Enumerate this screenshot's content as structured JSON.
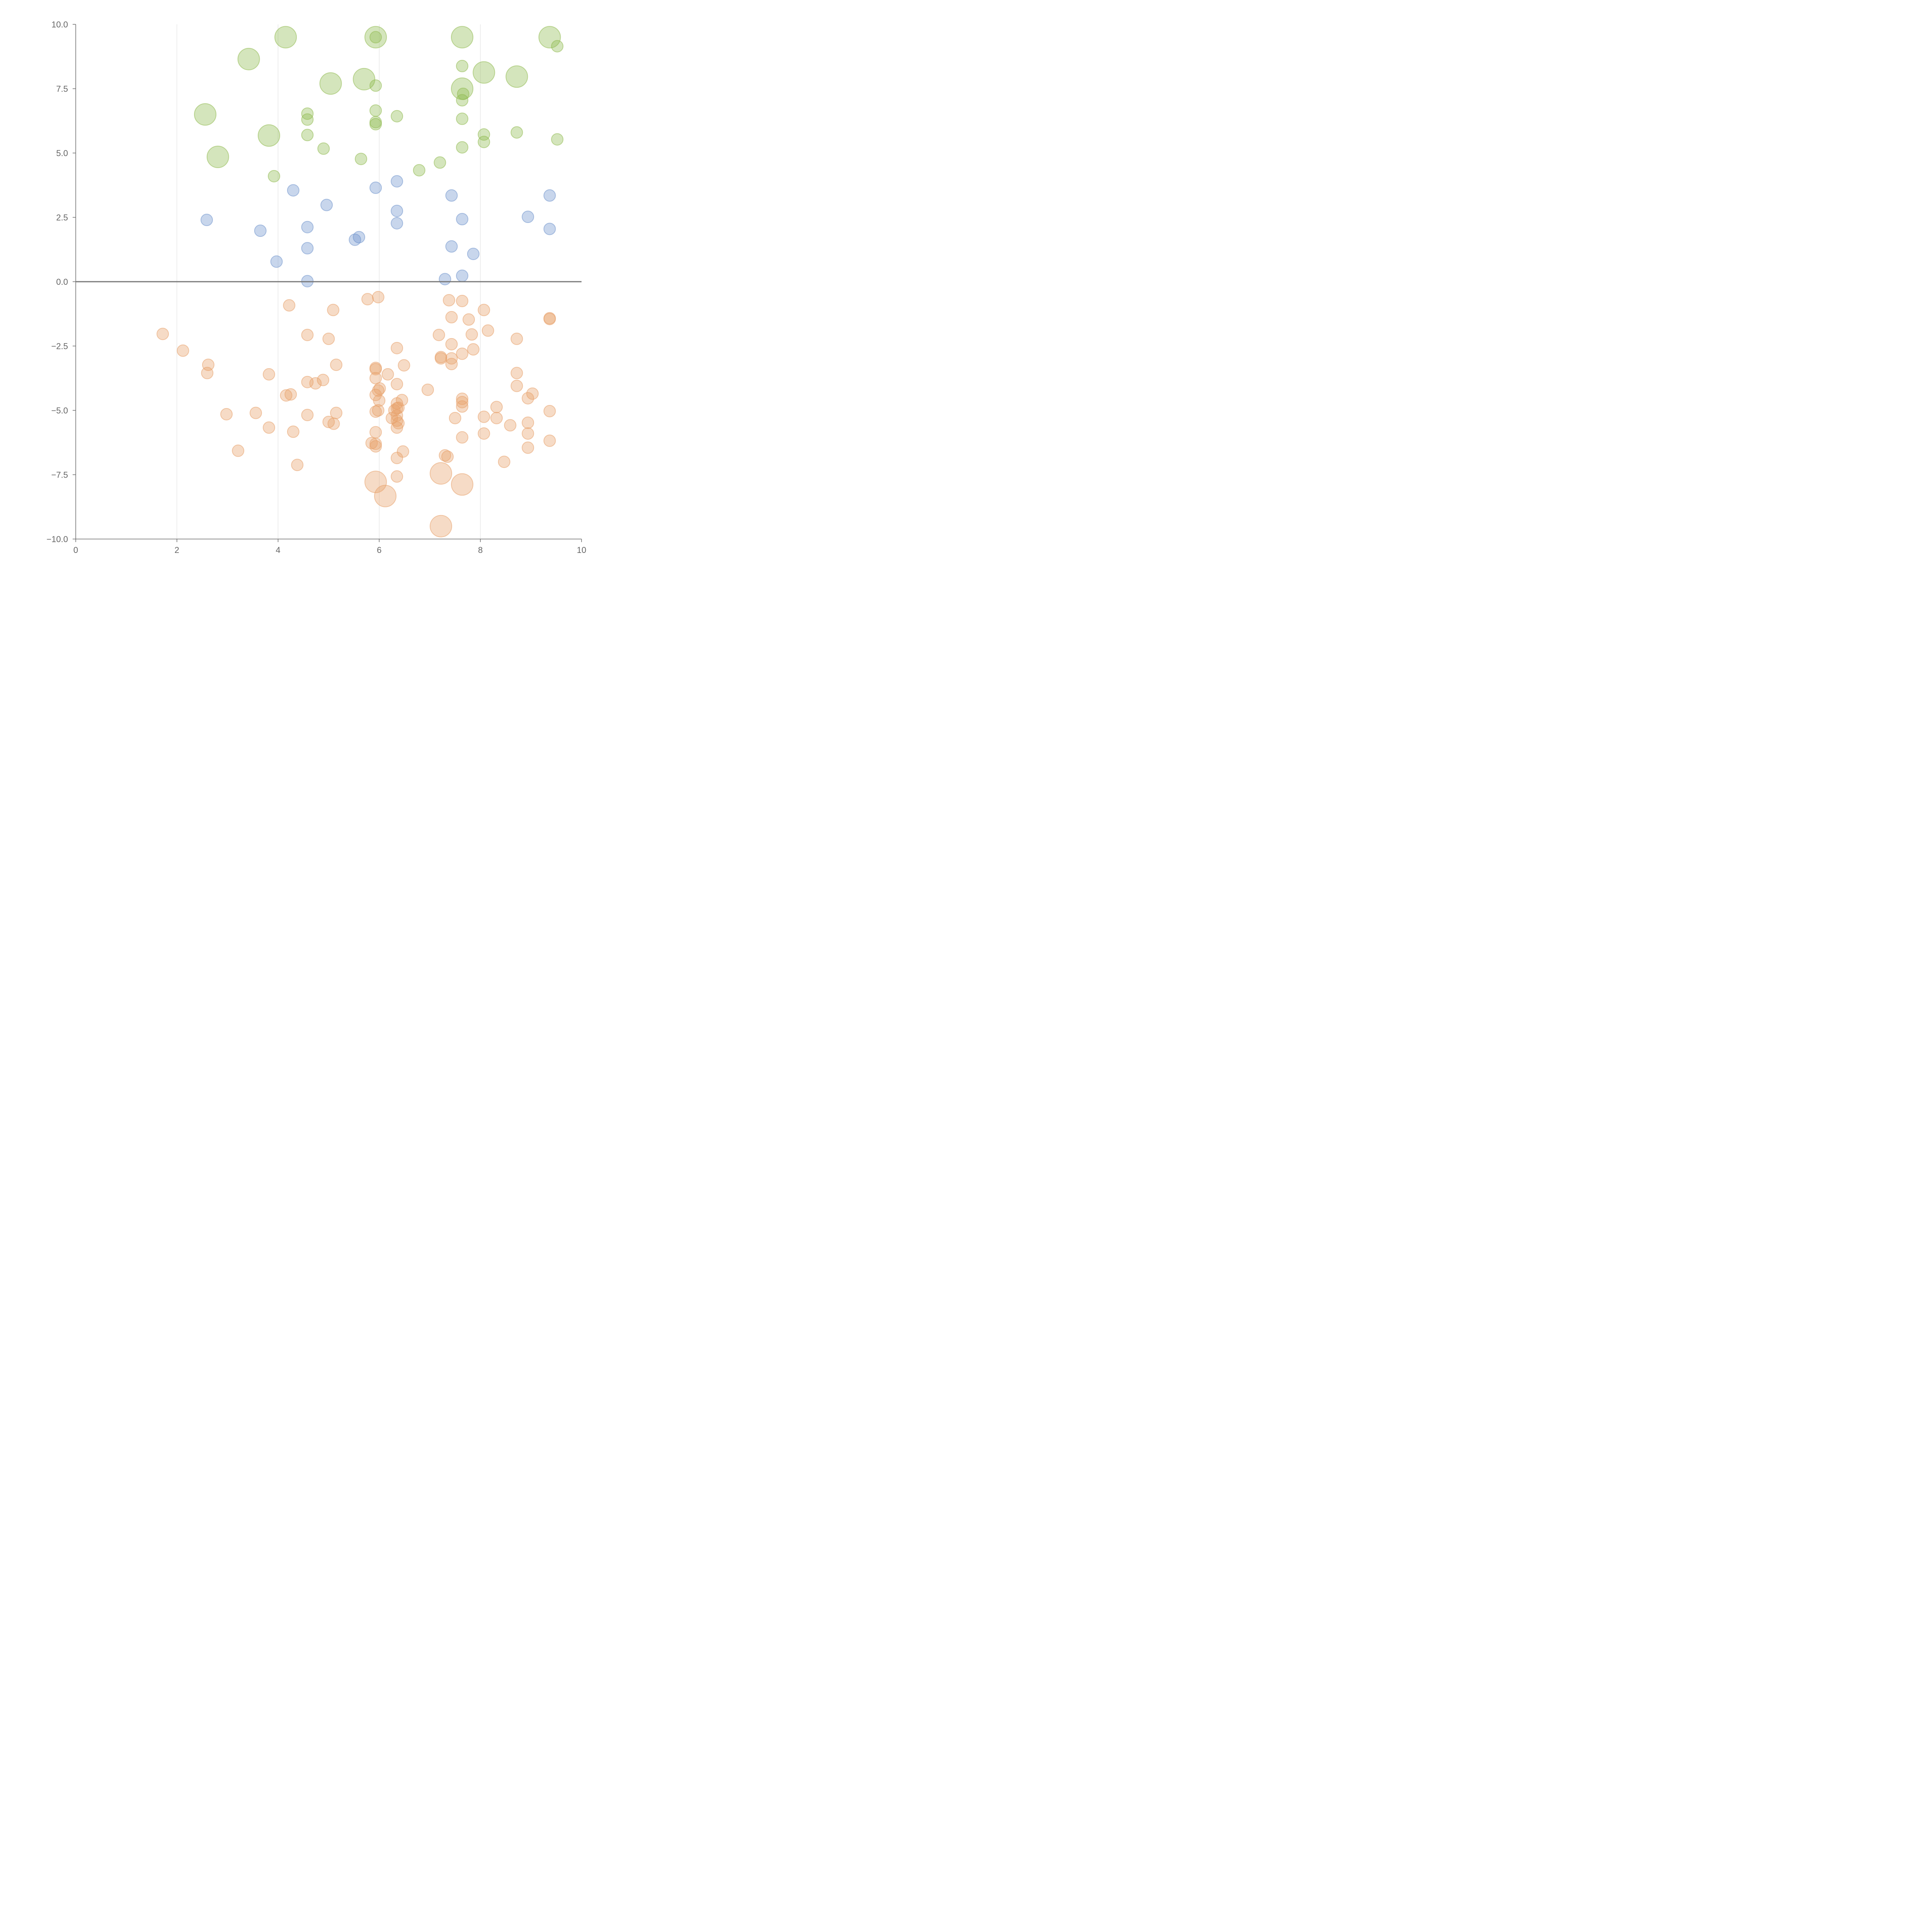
{
  "chart_data": {
    "type": "scatter",
    "title": "",
    "xlabel": "",
    "ylabel": "",
    "xlim": [
      0,
      10
    ],
    "ylim": [
      -10,
      10
    ],
    "x_ticks": [
      0,
      2,
      4,
      6,
      8,
      10
    ],
    "x_tick_labels": [
      "0",
      "2",
      "4",
      "6",
      "8",
      "10"
    ],
    "y_ticks": [
      -10,
      -7.5,
      -5,
      -2.5,
      0,
      2.5,
      5,
      7.5,
      10
    ],
    "y_tick_labels": [
      "−10.0",
      "−7.5",
      "−5.0",
      "−2.5",
      "0.0",
      "2.5",
      "5.0",
      "7.5",
      "10.0"
    ],
    "vertical_grid_at": [
      2,
      4,
      6,
      8
    ],
    "reference_line_y": 0,
    "series": [
      {
        "name": "green",
        "color": "#8fba4f",
        "points": [
          [
            4.15,
            9.5,
            2
          ],
          [
            5.93,
            9.5,
            2
          ],
          [
            5.93,
            9.5,
            1
          ],
          [
            7.64,
            9.5,
            2
          ],
          [
            9.37,
            9.5,
            2
          ],
          [
            9.52,
            9.15,
            1
          ],
          [
            3.42,
            8.65,
            2
          ],
          [
            7.64,
            8.38,
            1
          ],
          [
            8.07,
            8.13,
            2
          ],
          [
            8.72,
            7.97,
            2
          ],
          [
            5.7,
            7.87,
            2
          ],
          [
            5.04,
            7.7,
            2
          ],
          [
            5.93,
            7.62,
            1
          ],
          [
            7.64,
            7.5,
            2
          ],
          [
            7.66,
            7.3,
            1
          ],
          [
            7.64,
            7.05,
            1
          ],
          [
            2.56,
            6.5,
            2
          ],
          [
            5.93,
            6.65,
            1
          ],
          [
            4.58,
            6.53,
            1
          ],
          [
            6.35,
            6.43,
            1
          ],
          [
            4.58,
            6.3,
            1
          ],
          [
            7.64,
            6.33,
            1
          ],
          [
            5.93,
            6.2,
            1
          ],
          [
            5.93,
            6.12,
            1
          ],
          [
            3.82,
            5.68,
            2
          ],
          [
            4.58,
            5.7,
            1
          ],
          [
            8.07,
            5.72,
            1
          ],
          [
            8.72,
            5.8,
            1
          ],
          [
            9.52,
            5.53,
            1
          ],
          [
            8.07,
            5.43,
            1
          ],
          [
            7.64,
            5.22,
            1
          ],
          [
            4.9,
            5.17,
            1
          ],
          [
            2.81,
            4.85,
            2
          ],
          [
            5.64,
            4.77,
            1
          ],
          [
            7.2,
            4.63,
            1
          ],
          [
            6.79,
            4.33,
            1
          ],
          [
            3.92,
            4.1,
            1
          ]
        ]
      },
      {
        "name": "blue",
        "color": "#6f93cc",
        "points": [
          [
            6.35,
            3.9,
            1
          ],
          [
            5.93,
            3.65,
            1
          ],
          [
            4.3,
            3.55,
            1
          ],
          [
            7.43,
            3.35,
            1
          ],
          [
            9.37,
            3.35,
            1
          ],
          [
            4.96,
            2.98,
            1
          ],
          [
            6.35,
            2.75,
            1
          ],
          [
            8.94,
            2.52,
            1
          ],
          [
            2.59,
            2.4,
            1
          ],
          [
            7.64,
            2.43,
            1
          ],
          [
            6.35,
            2.27,
            1
          ],
          [
            4.58,
            2.12,
            1
          ],
          [
            9.37,
            2.05,
            1
          ],
          [
            3.65,
            1.98,
            1
          ],
          [
            5.6,
            1.73,
            1
          ],
          [
            5.52,
            1.63,
            1
          ],
          [
            7.43,
            1.37,
            1
          ],
          [
            4.58,
            1.3,
            1
          ],
          [
            7.86,
            1.08,
            1
          ],
          [
            3.97,
            0.78,
            1
          ],
          [
            7.64,
            0.23,
            1
          ],
          [
            7.3,
            0.1,
            1
          ],
          [
            4.58,
            0.02,
            1
          ]
        ]
      },
      {
        "name": "orange",
        "color": "#e8a06a",
        "points": [
          [
            5.98,
            -0.6,
            1
          ],
          [
            5.77,
            -0.68,
            1
          ],
          [
            7.38,
            -0.72,
            1
          ],
          [
            7.64,
            -0.75,
            1
          ],
          [
            4.22,
            -0.92,
            1
          ],
          [
            5.09,
            -1.1,
            1
          ],
          [
            8.07,
            -1.1,
            1
          ],
          [
            7.43,
            -1.38,
            1
          ],
          [
            7.77,
            -1.47,
            1
          ],
          [
            9.37,
            -1.42,
            1
          ],
          [
            9.37,
            -1.45,
            1
          ],
          [
            8.15,
            -1.9,
            1
          ],
          [
            1.72,
            -2.03,
            1
          ],
          [
            4.58,
            -2.07,
            1
          ],
          [
            7.18,
            -2.07,
            1
          ],
          [
            7.83,
            -2.05,
            1
          ],
          [
            5.0,
            -2.22,
            1
          ],
          [
            8.72,
            -2.22,
            1
          ],
          [
            7.43,
            -2.43,
            1
          ],
          [
            6.35,
            -2.58,
            1
          ],
          [
            2.12,
            -2.68,
            1
          ],
          [
            7.86,
            -2.63,
            1
          ],
          [
            7.64,
            -2.8,
            1
          ],
          [
            7.22,
            -2.93,
            1
          ],
          [
            7.22,
            -2.98,
            1
          ],
          [
            7.43,
            -2.98,
            1
          ],
          [
            2.62,
            -3.23,
            1
          ],
          [
            5.15,
            -3.23,
            1
          ],
          [
            6.49,
            -3.25,
            1
          ],
          [
            7.43,
            -3.2,
            1
          ],
          [
            5.93,
            -3.35,
            1
          ],
          [
            5.93,
            -3.4,
            1
          ],
          [
            2.6,
            -3.55,
            1
          ],
          [
            3.82,
            -3.6,
            1
          ],
          [
            6.17,
            -3.6,
            1
          ],
          [
            8.72,
            -3.55,
            1
          ],
          [
            5.93,
            -3.75,
            1
          ],
          [
            4.89,
            -3.82,
            1
          ],
          [
            4.58,
            -3.9,
            1
          ],
          [
            4.74,
            -3.95,
            1
          ],
          [
            6.35,
            -3.98,
            1
          ],
          [
            8.72,
            -4.05,
            1
          ],
          [
            6.01,
            -4.15,
            1
          ],
          [
            5.98,
            -4.23,
            1
          ],
          [
            6.96,
            -4.2,
            1
          ],
          [
            4.16,
            -4.42,
            1
          ],
          [
            4.25,
            -4.38,
            1
          ],
          [
            5.93,
            -4.4,
            1
          ],
          [
            9.03,
            -4.35,
            1
          ],
          [
            8.94,
            -4.53,
            1
          ],
          [
            6.0,
            -4.62,
            1
          ],
          [
            6.45,
            -4.6,
            1
          ],
          [
            7.64,
            -4.55,
            1
          ],
          [
            7.64,
            -4.68,
            1
          ],
          [
            6.35,
            -4.73,
            1
          ],
          [
            6.38,
            -4.9,
            1
          ],
          [
            6.35,
            -4.92,
            1
          ],
          [
            7.64,
            -4.85,
            1
          ],
          [
            8.32,
            -4.87,
            1
          ],
          [
            5.98,
            -5.0,
            1
          ],
          [
            2.98,
            -5.15,
            1
          ],
          [
            3.56,
            -5.1,
            1
          ],
          [
            5.93,
            -5.05,
            1
          ],
          [
            6.3,
            -5.0,
            1
          ],
          [
            9.37,
            -5.03,
            1
          ],
          [
            5.15,
            -5.1,
            1
          ],
          [
            4.58,
            -5.18,
            1
          ],
          [
            6.35,
            -5.2,
            1
          ],
          [
            6.25,
            -5.3,
            1
          ],
          [
            7.5,
            -5.3,
            1
          ],
          [
            8.07,
            -5.25,
            1
          ],
          [
            8.32,
            -5.3,
            1
          ],
          [
            6.35,
            -5.4,
            1
          ],
          [
            6.38,
            -5.5,
            1
          ],
          [
            5.0,
            -5.45,
            1
          ],
          [
            5.1,
            -5.52,
            1
          ],
          [
            8.94,
            -5.48,
            1
          ],
          [
            8.59,
            -5.58,
            1
          ],
          [
            3.82,
            -5.67,
            1
          ],
          [
            6.35,
            -5.67,
            1
          ],
          [
            4.3,
            -5.83,
            1
          ],
          [
            5.93,
            -5.85,
            1
          ],
          [
            8.07,
            -5.9,
            1
          ],
          [
            8.94,
            -5.9,
            1
          ],
          [
            7.64,
            -6.05,
            1
          ],
          [
            9.37,
            -6.18,
            1
          ],
          [
            5.85,
            -6.27,
            1
          ],
          [
            5.93,
            -6.3,
            1
          ],
          [
            5.93,
            -6.4,
            1
          ],
          [
            8.94,
            -6.45,
            1
          ],
          [
            3.21,
            -6.57,
            1
          ],
          [
            6.47,
            -6.6,
            1
          ],
          [
            7.3,
            -6.75,
            1
          ],
          [
            7.35,
            -6.8,
            1
          ],
          [
            6.35,
            -6.85,
            1
          ],
          [
            8.47,
            -7.0,
            1
          ],
          [
            4.38,
            -7.12,
            1
          ],
          [
            7.22,
            -7.45,
            2
          ],
          [
            6.35,
            -7.57,
            1
          ],
          [
            5.93,
            -7.78,
            2
          ],
          [
            7.64,
            -7.88,
            2
          ],
          [
            6.12,
            -8.33,
            2
          ],
          [
            7.22,
            -9.5,
            2
          ]
        ]
      }
    ]
  }
}
